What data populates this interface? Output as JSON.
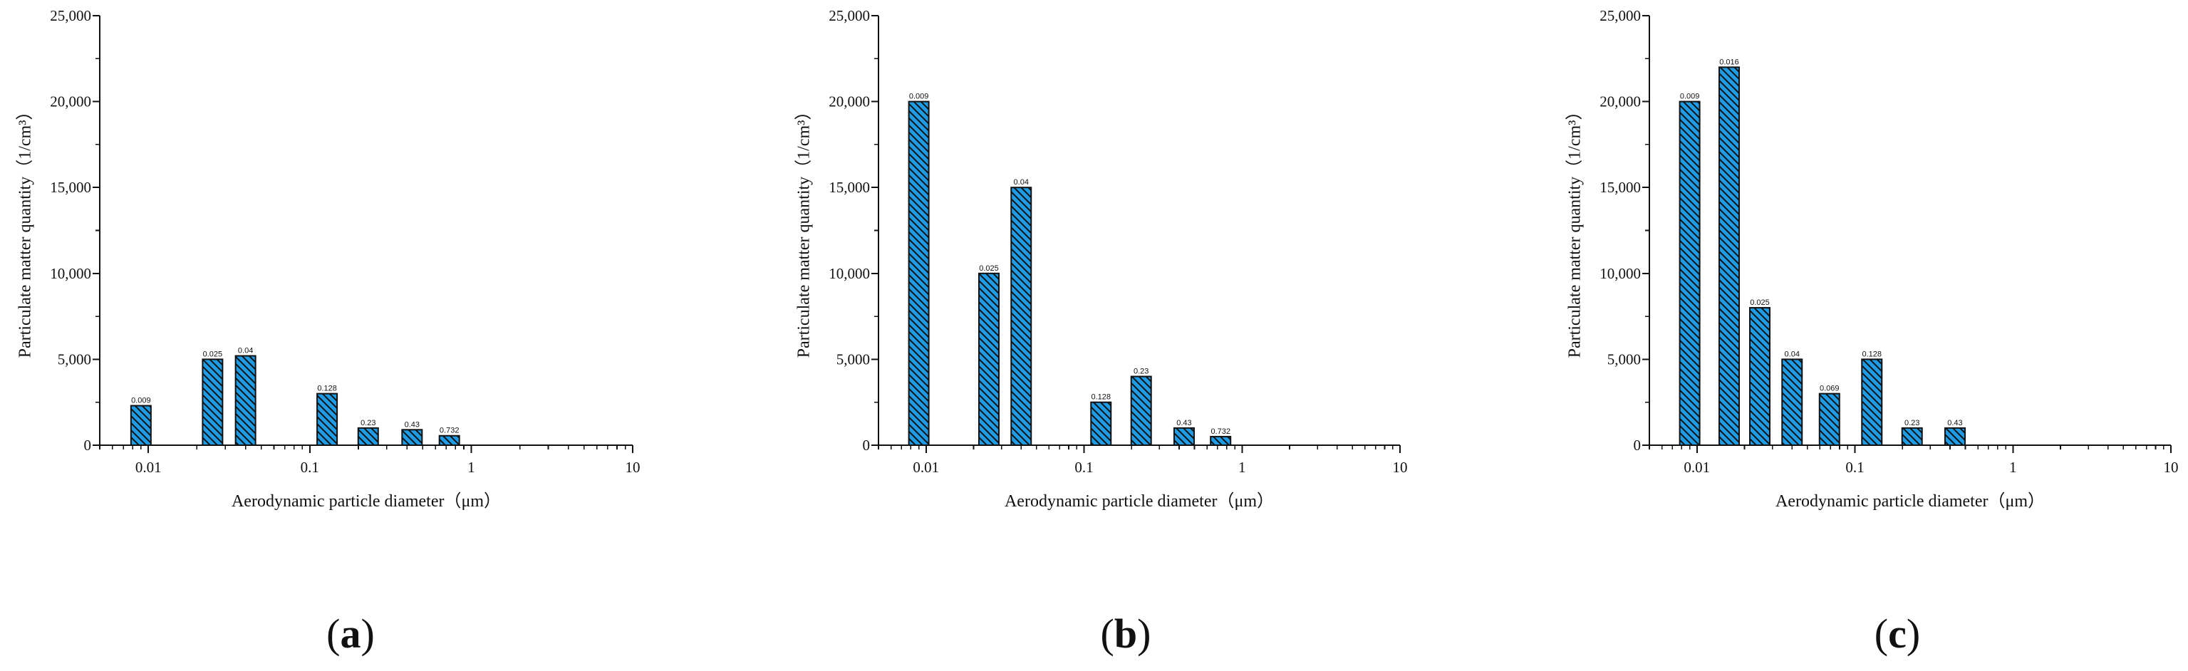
{
  "bar_color": "#1e9be4",
  "hatch_color": "#111111",
  "chart_data": [
    {
      "type": "bar",
      "panel": "a",
      "x_scale": "log",
      "xlim": [
        0.005,
        10
      ],
      "ylim": [
        0,
        25000
      ],
      "xlabel": "Aerodynamic particle diameter（μm）",
      "ylabel": "Particulate matter quantity（1/cm³）",
      "x_ticks": [
        "0.01",
        "0.1",
        "1",
        "10"
      ],
      "y_ticks": [
        "0",
        "5,000",
        "10,000",
        "15,000",
        "20,000",
        "25,000"
      ],
      "bars": [
        {
          "x": 0.009,
          "label": "0.009",
          "value": 2300
        },
        {
          "x": 0.025,
          "label": "0.025",
          "value": 5000
        },
        {
          "x": 0.04,
          "label": "0.04",
          "value": 5200
        },
        {
          "x": 0.128,
          "label": "0.128",
          "value": 3000
        },
        {
          "x": 0.23,
          "label": "0.23",
          "value": 1000
        },
        {
          "x": 0.43,
          "label": "0.43",
          "value": 900
        },
        {
          "x": 0.732,
          "label": "0.732",
          "value": 550
        }
      ]
    },
    {
      "type": "bar",
      "panel": "b",
      "x_scale": "log",
      "xlim": [
        0.005,
        10
      ],
      "ylim": [
        0,
        25000
      ],
      "xlabel": "Aerodynamic particle diameter（μm）",
      "ylabel": "Particulate matter quantity（1/cm³）",
      "x_ticks": [
        "0.01",
        "0.1",
        "1",
        "10"
      ],
      "y_ticks": [
        "0",
        "5,000",
        "10,000",
        "15,000",
        "20,000",
        "25,000"
      ],
      "bars": [
        {
          "x": 0.009,
          "label": "0.009",
          "value": 20000
        },
        {
          "x": 0.025,
          "label": "0.025",
          "value": 10000
        },
        {
          "x": 0.04,
          "label": "0.04",
          "value": 15000
        },
        {
          "x": 0.128,
          "label": "0.128",
          "value": 2500
        },
        {
          "x": 0.23,
          "label": "0.23",
          "value": 4000
        },
        {
          "x": 0.43,
          "label": "0.43",
          "value": 1000
        },
        {
          "x": 0.732,
          "label": "0.732",
          "value": 500
        }
      ]
    },
    {
      "type": "bar",
      "panel": "c",
      "x_scale": "log",
      "xlim": [
        0.005,
        10
      ],
      "ylim": [
        0,
        25000
      ],
      "xlabel": "Aerodynamic particle diameter（μm）",
      "ylabel": "Particulate matter quantity（1/cm³）",
      "x_ticks": [
        "0.01",
        "0.1",
        "1",
        "10"
      ],
      "y_ticks": [
        "0",
        "5,000",
        "10,000",
        "15,000",
        "20,000",
        "25,000"
      ],
      "bars": [
        {
          "x": 0.009,
          "label": "0.009",
          "value": 20000
        },
        {
          "x": 0.016,
          "label": "0.016",
          "value": 22000
        },
        {
          "x": 0.025,
          "label": "0.025",
          "value": 8000
        },
        {
          "x": 0.04,
          "label": "0.04",
          "value": 5000
        },
        {
          "x": 0.069,
          "label": "0.069",
          "value": 3000
        },
        {
          "x": 0.128,
          "label": "0.128",
          "value": 5000
        },
        {
          "x": 0.23,
          "label": "0.23",
          "value": 1000
        },
        {
          "x": 0.43,
          "label": "0.43",
          "value": 1000
        }
      ]
    }
  ]
}
